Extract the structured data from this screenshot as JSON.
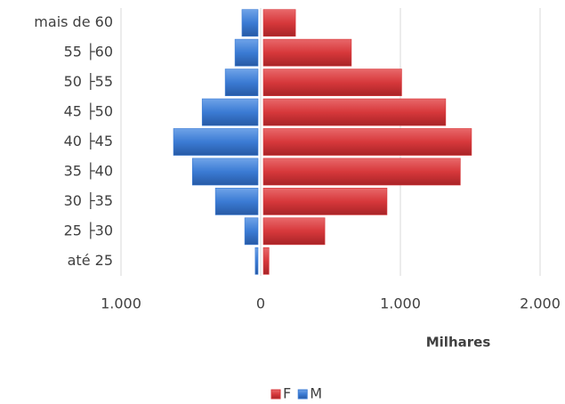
{
  "chart_data": {
    "type": "bar",
    "orientation": "horizontal",
    "categories": [
      "até 25",
      "25 ├30",
      "30 ├35",
      "35 ├40",
      "40 ├45",
      "45 ├50",
      "50 ├55",
      "55 ├60",
      "mais de 60"
    ],
    "series": [
      {
        "name": "F",
        "color": "#d7383b",
        "values": [
          40,
          440,
          885,
          1410,
          1490,
          1305,
          990,
          630,
          230
        ]
      },
      {
        "name": "M",
        "color": "#3b7bd4",
        "values": [
          -20,
          -95,
          -305,
          -470,
          -605,
          -400,
          -235,
          -165,
          -115
        ]
      }
    ],
    "x_label": "Milhares",
    "xlim": [
      -1000,
      2000
    ],
    "xticks": [
      {
        "value": -1000,
        "label": "1.000"
      },
      0,
      {
        "value": 1000,
        "label": "1.000"
      },
      {
        "value": 2000,
        "label": "2.000"
      }
    ],
    "grid": true,
    "legend": "bottom"
  }
}
